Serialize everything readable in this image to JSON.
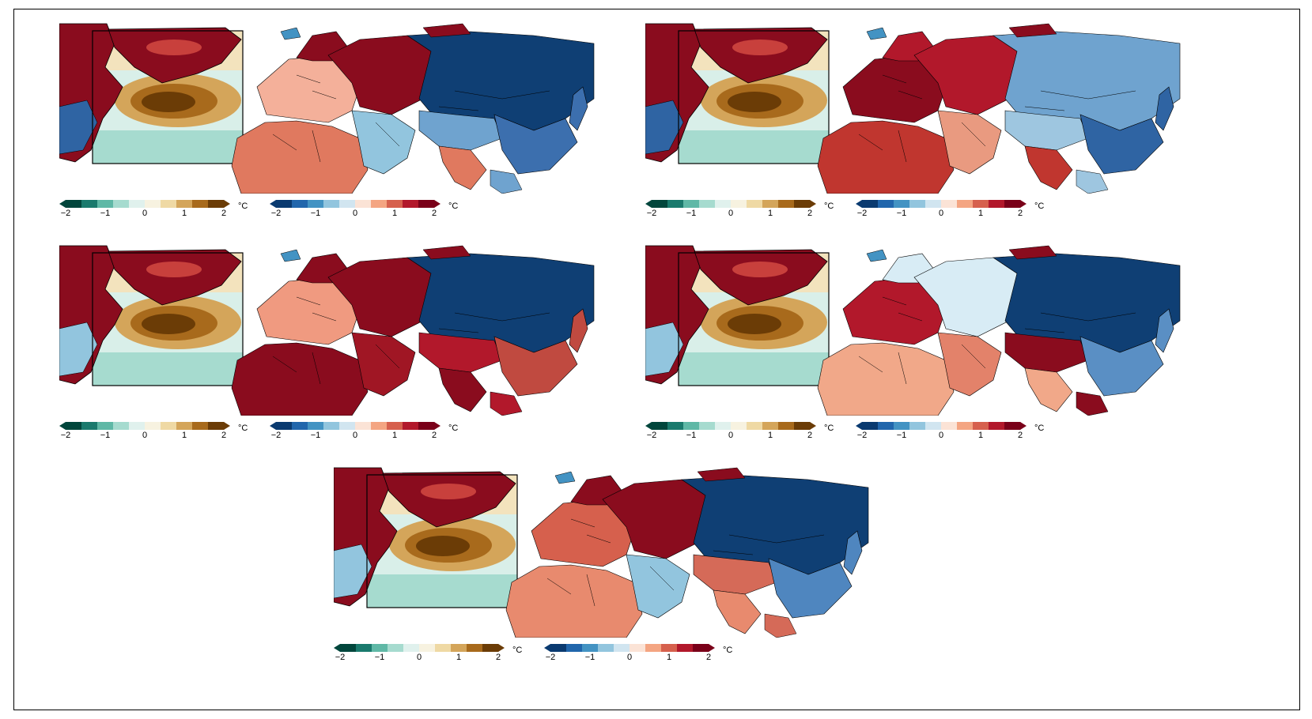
{
  "figure": {
    "panels": [
      {
        "id": "p1",
        "anomaly_pattern": "warm-europe-cold-siberia"
      },
      {
        "id": "p2",
        "anomaly_pattern": "warm-west-russia-mixed-asia"
      },
      {
        "id": "p3",
        "anomaly_pattern": "cold-siberia-warm-africa-asia"
      },
      {
        "id": "p4",
        "anomaly_pattern": "cold-siberia-warm-tibet"
      },
      {
        "id": "p5",
        "anomaly_pattern": "cold-siberia-warm-east-europe"
      }
    ]
  },
  "colorbars": {
    "sst": {
      "ticks": [
        "−2",
        "−1",
        "0",
        "1",
        "2"
      ],
      "unit": "°C",
      "colors": [
        "#01463c",
        "#1a7a6d",
        "#5fb8a6",
        "#a6dbcf",
        "#e0f1ed",
        "#f7f2e0",
        "#efd9a4",
        "#d4a55a",
        "#a86a1c",
        "#6b3c06"
      ]
    },
    "air": {
      "ticks": [
        "−2",
        "−1",
        "0",
        "1",
        "2"
      ],
      "unit": "°C",
      "colors": [
        "#0a3a70",
        "#2166ac",
        "#4393c3",
        "#92c5de",
        "#d1e5f0",
        "#fbe3d6",
        "#f4a582",
        "#d6604d",
        "#b2182b",
        "#7a0019"
      ]
    }
  },
  "colors": {
    "warm_strong": "#8a0c1e",
    "cold_strong": "#0f3f74",
    "sst_brown": "#6b3c06",
    "sst_teal": "#a6dbcf",
    "coast": "#000000"
  }
}
